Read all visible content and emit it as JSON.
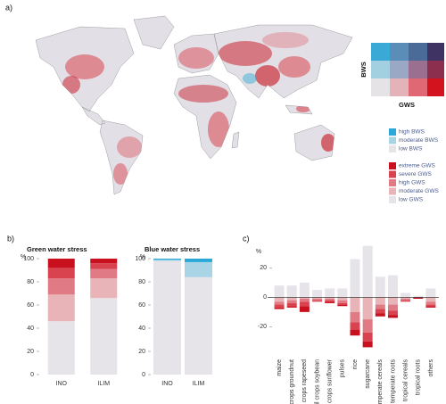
{
  "panels": [
    "a)",
    "b)",
    "c)"
  ],
  "map_legend": {
    "bws_label": "BWS",
    "gws_label": "GWS",
    "bws_entries": [
      {
        "label": "high BWS",
        "color": "#2aa8d8"
      },
      {
        "label": "moderate BWS",
        "color": "#a8d4e6"
      },
      {
        "label": "low BWS",
        "color": "#e6e4e8"
      }
    ],
    "gws_entries": [
      {
        "label": "extreme GWS",
        "color": "#c8101e"
      },
      {
        "label": "severe GWS",
        "color": "#d9434f"
      },
      {
        "label": "high GWS",
        "color": "#e07a84"
      },
      {
        "label": "moderate GWS",
        "color": "#e8b4b8"
      },
      {
        "label": "low GWS",
        "color": "#e6e4e8"
      }
    ]
  },
  "chart_data": [
    {
      "type": "bar",
      "stacked": true,
      "title": "Green water stress",
      "ylabel": "%",
      "categories": [
        "INO",
        "ILIM"
      ],
      "series": [
        {
          "name": "low GWS",
          "color": "#e6e4e8",
          "values": [
            46,
            66
          ]
        },
        {
          "name": "moderate GWS",
          "color": "#e8b4b8",
          "values": [
            23,
            17
          ]
        },
        {
          "name": "high GWS",
          "color": "#e07a84",
          "values": [
            14,
            8
          ]
        },
        {
          "name": "severe GWS",
          "color": "#d9434f",
          "values": [
            9,
            5
          ]
        },
        {
          "name": "extreme GWS",
          "color": "#c8101e",
          "values": [
            8,
            4
          ]
        }
      ],
      "ylim": [
        0,
        100
      ],
      "yticks": [
        0,
        20,
        40,
        60,
        80,
        100
      ]
    },
    {
      "type": "bar",
      "stacked": true,
      "title": "Blue water stress",
      "ylabel": "%",
      "categories": [
        "INO",
        "ILIM"
      ],
      "series": [
        {
          "name": "low BWS",
          "color": "#e6e4e8",
          "values": [
            98,
            84
          ]
        },
        {
          "name": "moderate BWS",
          "color": "#a8d4e6",
          "values": [
            1,
            13
          ]
        },
        {
          "name": "high BWS",
          "color": "#2aa8d8",
          "values": [
            1,
            3
          ]
        }
      ],
      "ylim": [
        0,
        100
      ],
      "yticks": [
        0,
        20,
        40,
        60,
        80,
        100
      ]
    },
    {
      "type": "bar",
      "stacked": true,
      "ylabel": "%",
      "categories": [
        "maize",
        "oil crops groundnut",
        "oil crops rapeseed",
        "oil crops soybean",
        "oil crops sunflower",
        "pulses",
        "rice",
        "sugarcane",
        "temperate cereals",
        "temperate roots",
        "tropical cereals",
        "tropical roots",
        "others"
      ],
      "series": [
        {
          "name": "low GWS",
          "color": "#e6e4e8",
          "values": [
            8,
            8,
            10,
            5,
            6,
            6,
            26,
            35,
            14,
            15,
            3,
            1,
            6
          ]
        },
        {
          "name": "moderate GWS",
          "color": "#e8b4b8",
          "values": [
            -3,
            -2,
            -1,
            -1,
            -1,
            -2,
            -10,
            -15,
            -5,
            -5,
            -1,
            0,
            -3
          ]
        },
        {
          "name": "high GWS",
          "color": "#e07a84",
          "values": [
            -2,
            -2,
            -2,
            -1,
            -1,
            -2,
            -7,
            -9,
            -3,
            -4,
            -1,
            0,
            -2
          ]
        },
        {
          "name": "severe GWS",
          "color": "#d9434f",
          "values": [
            -2,
            -2,
            -3,
            -1,
            -1,
            -1,
            -5,
            -6,
            -3,
            -3,
            -1,
            0,
            -1
          ]
        },
        {
          "name": "extreme GWS",
          "color": "#c8101e",
          "values": [
            -1,
            -1,
            -4,
            0,
            -1,
            -1,
            -4,
            -4,
            -2,
            -2,
            0,
            -1,
            -1
          ]
        }
      ],
      "ylim": [
        -38,
        36
      ],
      "yticks": [
        -20,
        0,
        20
      ]
    }
  ]
}
